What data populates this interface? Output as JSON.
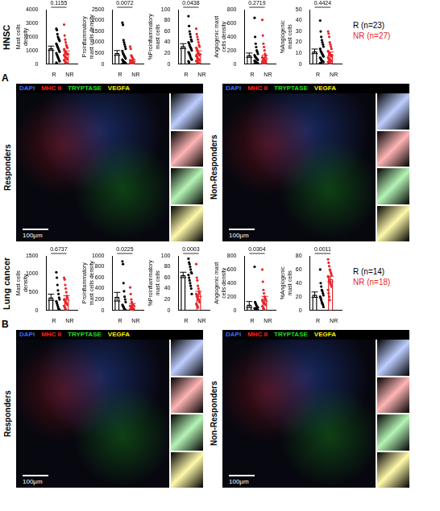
{
  "panels": [
    {
      "letter": "A",
      "label": "HNSC",
      "groups": [
        {
          "name": "R (n=23)",
          "color": "#000000"
        },
        {
          "name": "NR (n=27)",
          "color": "#e8262a"
        }
      ],
      "image_rows": [
        "Responders",
        "Non-Responders"
      ],
      "channels": [
        {
          "name": "DAPI",
          "color": "#3b6cff"
        },
        {
          "name": "MHC II",
          "color": "#ff2020"
        },
        {
          "name": "TRYPTASE",
          "color": "#22dd22"
        },
        {
          "name": "VEGFA",
          "color": "#ffee00"
        }
      ],
      "scale_bar": "100µm"
    },
    {
      "letter": "B",
      "label": "Lung cancer",
      "groups": [
        {
          "name": "R (n=14)",
          "color": "#000000"
        },
        {
          "name": "NR (n=18)",
          "color": "#e8262a"
        }
      ],
      "image_rows": [
        "Responders",
        "Non-Responders"
      ],
      "channels": [
        {
          "name": "DAPI",
          "color": "#3b6cff"
        },
        {
          "name": "MHC II",
          "color": "#ff2020"
        },
        {
          "name": "TRYPTASE",
          "color": "#22dd22"
        },
        {
          "name": "VEGFA",
          "color": "#ffee00"
        }
      ],
      "scale_bar": "100µm"
    }
  ],
  "chart_data": [
    {
      "type": "bar",
      "panel": "A",
      "y_label": "Mast cells density",
      "categories": [
        "R",
        "NR"
      ],
      "values": [
        1160,
        850
      ],
      "errors": [
        160,
        120
      ],
      "points": [
        [
          2600,
          2500,
          2200,
          2000,
          1900,
          1800,
          1700,
          1500,
          1400,
          1300,
          1200,
          1100,
          1000,
          900,
          800,
          700,
          600,
          500,
          400,
          300,
          200,
          100,
          50
        ],
        [
          2900,
          2100,
          1800,
          1600,
          1400,
          1300,
          1200,
          1100,
          1000,
          900,
          850,
          800,
          750,
          700,
          650,
          600,
          550,
          500,
          450,
          400,
          350,
          300,
          250,
          200,
          150,
          100,
          50
        ]
      ],
      "colors": [
        "#000000",
        "#e8262a"
      ],
      "ylim": [
        0,
        4000
      ],
      "yticks": [
        0,
        1000,
        2000,
        3000,
        4000
      ],
      "p_value": 0.1155,
      "grid": false
    },
    {
      "type": "bar",
      "panel": "A",
      "y_label": "Proinflammatory mast cells density",
      "categories": [
        "R",
        "NR"
      ],
      "values": [
        510,
        155
      ],
      "errors": [
        110,
        40
      ],
      "points": [
        [
          1900,
          1800,
          1100,
          1000,
          900,
          800,
          700,
          600,
          500,
          450,
          400,
          350,
          300,
          250,
          200,
          150,
          120,
          100,
          80,
          60,
          40,
          20,
          10
        ],
        [
          800,
          700,
          400,
          350,
          300,
          250,
          200,
          180,
          160,
          140,
          120,
          100,
          90,
          80,
          70,
          60,
          50,
          40,
          30,
          25,
          20,
          15,
          10,
          8,
          5,
          3,
          2
        ]
      ],
      "colors": [
        "#000000",
        "#e8262a"
      ],
      "ylim": [
        0,
        2500
      ],
      "yticks": [
        0,
        500,
        1000,
        1500,
        2000,
        2500
      ],
      "p_value": 0.0072,
      "grid": false
    },
    {
      "type": "bar",
      "panel": "A",
      "y_label": "%Proinflammatory mast cells",
      "categories": [
        "R",
        "NR"
      ],
      "values": [
        33,
        21
      ],
      "errors": [
        4.5,
        3.2
      ],
      "points": [
        [
          88,
          70,
          60,
          55,
          50,
          45,
          42,
          40,
          38,
          35,
          32,
          30,
          28,
          25,
          22,
          20,
          18,
          15,
          12,
          10,
          8,
          5,
          3
        ],
        [
          65,
          55,
          50,
          45,
          40,
          35,
          32,
          30,
          28,
          25,
          22,
          20,
          18,
          16,
          15,
          14,
          12,
          10,
          9,
          8,
          7,
          6,
          5,
          4,
          3,
          2,
          1
        ]
      ],
      "colors": [
        "#000000",
        "#e8262a"
      ],
      "ylim": [
        0,
        100
      ],
      "yticks": [
        0,
        20,
        40,
        60,
        80,
        100
      ],
      "p_value": 0.0438,
      "grid": false
    },
    {
      "type": "bar",
      "panel": "A",
      "y_label": "Angiogenic mast cells density",
      "categories": [
        "R",
        "NR"
      ],
      "values": [
        130,
        104
      ],
      "errors": [
        32,
        28
      ],
      "points": [
        [
          680,
          400,
          300,
          250,
          200,
          180,
          150,
          130,
          110,
          100,
          90,
          80,
          70,
          60,
          50,
          40,
          30,
          25,
          20,
          15,
          10,
          5,
          3
        ],
        [
          650,
          420,
          300,
          250,
          200,
          150,
          120,
          100,
          90,
          80,
          70,
          60,
          50,
          45,
          40,
          35,
          30,
          25,
          20,
          18,
          15,
          12,
          10,
          8,
          5,
          3,
          2
        ]
      ],
      "colors": [
        "#000000",
        "#e8262a"
      ],
      "ylim": [
        0,
        800
      ],
      "yticks": [
        0,
        200,
        400,
        600,
        800
      ],
      "p_value": 0.2719,
      "grid": false
    },
    {
      "type": "bar",
      "panel": "A",
      "y_label": "%Angiogenic mast cells",
      "categories": [
        "R",
        "NR"
      ],
      "values": [
        11.7,
        9.4
      ],
      "errors": [
        2.1,
        1.6
      ],
      "points": [
        [
          40,
          30,
          25,
          22,
          20,
          18,
          16,
          14,
          12,
          11,
          10,
          9,
          8,
          7,
          6,
          5,
          4,
          3,
          3,
          2,
          2,
          1,
          1
        ],
        [
          30,
          28,
          25,
          20,
          18,
          16,
          14,
          12,
          11,
          10,
          9,
          8,
          8,
          7,
          6,
          5,
          5,
          4,
          4,
          3,
          3,
          2,
          2,
          1,
          1,
          1,
          0
        ]
      ],
      "colors": [
        "#000000",
        "#e8262a"
      ],
      "ylim": [
        0,
        50
      ],
      "yticks": [
        0,
        10,
        20,
        30,
        40,
        50
      ],
      "p_value": 0.4424,
      "grid": false
    },
    {
      "type": "bar",
      "panel": "B",
      "y_label": "Mast cells density",
      "categories": [
        "R",
        "NR"
      ],
      "values": [
        360,
        340
      ],
      "errors": [
        85,
        60
      ],
      "points": [
        [
          1050,
          900,
          700,
          550,
          450,
          350,
          300,
          250,
          200,
          150,
          100,
          50,
          20,
          10
        ],
        [
          900,
          850,
          700,
          600,
          500,
          400,
          350,
          300,
          280,
          250,
          220,
          200,
          180,
          150,
          120,
          100,
          60,
          30
        ]
      ],
      "colors": [
        "#000000",
        "#e8262a"
      ],
      "ylim": [
        0,
        1500
      ],
      "yticks": [
        0,
        500,
        1000,
        1500
      ],
      "p_value": 0.6737,
      "grid": false
    },
    {
      "type": "bar",
      "panel": "B",
      "y_label": "Proinflammatory mast cells density",
      "categories": [
        "R",
        "NR"
      ],
      "values": [
        250,
        99
      ],
      "errors": [
        80,
        25
      ],
      "points": [
        [
          900,
          850,
          500,
          350,
          250,
          200,
          150,
          100,
          80,
          60,
          40,
          20,
          10,
          5
        ],
        [
          420,
          300,
          200,
          150,
          120,
          100,
          90,
          80,
          70,
          60,
          50,
          40,
          30,
          25,
          20,
          15,
          10,
          5
        ]
      ],
      "colors": [
        "#000000",
        "#e8262a"
      ],
      "ylim": [
        0,
        1000
      ],
      "yticks": [
        0,
        200,
        400,
        600,
        800,
        1000
      ],
      "p_value": 0.0225,
      "grid": false
    },
    {
      "type": "bar",
      "panel": "B",
      "y_label": "%Proinflammatory mast cells",
      "categories": [
        "R",
        "NR"
      ],
      "values": [
        65,
        30
      ],
      "errors": [
        5,
        5
      ],
      "points": [
        [
          95,
          88,
          85,
          80,
          75,
          70,
          68,
          65,
          60,
          55,
          50,
          45,
          40,
          30
        ],
        [
          85,
          60,
          55,
          45,
          40,
          35,
          32,
          30,
          28,
          25,
          22,
          20,
          18,
          15,
          12,
          10,
          8,
          5
        ]
      ],
      "colors": [
        "#000000",
        "#e8262a"
      ],
      "ylim": [
        0,
        100
      ],
      "yticks": [
        0,
        20,
        40,
        60,
        80,
        100
      ],
      "p_value": 0.0003,
      "grid": false
    },
    {
      "type": "bar",
      "panel": "B",
      "y_label": "Angiogenic mast cells density",
      "categories": [
        "R",
        "NR"
      ],
      "values": [
        85,
        170
      ],
      "errors": [
        44,
        35
      ],
      "points": [
        [
          640,
          120,
          100,
          80,
          60,
          50,
          40,
          30,
          25,
          20,
          15,
          10,
          5,
          2
        ],
        [
          600,
          420,
          300,
          250,
          200,
          180,
          160,
          150,
          130,
          120,
          110,
          100,
          90,
          80,
          60,
          50,
          30,
          20
        ]
      ],
      "colors": [
        "#000000",
        "#e8262a"
      ],
      "ylim": [
        0,
        800
      ],
      "yticks": [
        0,
        200,
        400,
        600,
        800
      ],
      "p_value": 0.0304,
      "grid": false
    },
    {
      "type": "bar",
      "panel": "B",
      "y_label": "%Angiogenic mast cells",
      "categories": [
        "R",
        "NR"
      ],
      "values": [
        23,
        46
      ],
      "errors": [
        4,
        4
      ],
      "points": [
        [
          60,
          40,
          35,
          30,
          28,
          25,
          22,
          20,
          18,
          15,
          12,
          10,
          8,
          5
        ],
        [
          75,
          70,
          65,
          60,
          58,
          55,
          52,
          50,
          48,
          45,
          42,
          40,
          38,
          35,
          30,
          25,
          20,
          15
        ]
      ],
      "colors": [
        "#000000",
        "#e8262a"
      ],
      "ylim": [
        0,
        80
      ],
      "yticks": [
        0,
        20,
        40,
        60,
        80
      ],
      "p_value": 0.0011,
      "grid": false
    }
  ]
}
